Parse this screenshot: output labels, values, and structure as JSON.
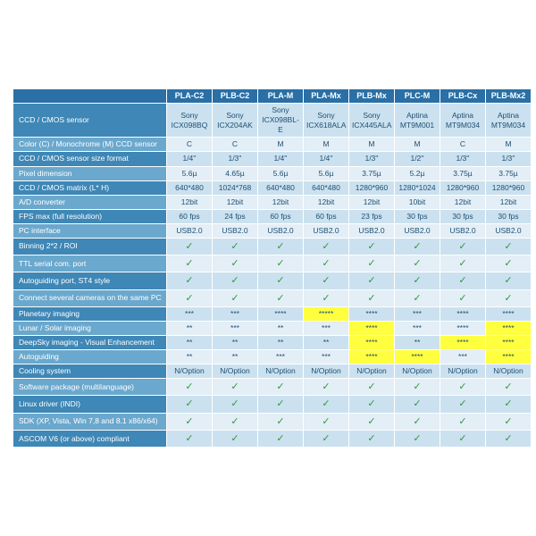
{
  "colors": {
    "header_bg": "#2a6fa5",
    "row_odd_label": "#3e87b6",
    "row_even_label": "#6ba8cd",
    "cell_odd": "#cbe1ef",
    "cell_even": "#e3eef6",
    "highlight": "#ffff3f",
    "text_cell": "#1f4f72"
  },
  "columns": [
    "PLA-C2",
    "PLB-C2",
    "PLA-M",
    "PLA-Mx",
    "PLB-Mx",
    "PLC-M",
    "PLB-Cx",
    "PLB-Mx2"
  ],
  "rows": [
    {
      "label": "CCD / CMOS sensor",
      "cells": [
        "Sony ICX098BQ",
        "Sony ICX204AK",
        "Sony ICX098BL-E",
        "Sony ICX618ALA",
        "Sony ICX445ALA",
        "Aptina MT9M001",
        "Aptina MT9M034",
        "Aptina MT9M034"
      ]
    },
    {
      "label": "Color (C) / Monochrome (M) CCD sensor",
      "cells": [
        "C",
        "C",
        "M",
        "M",
        "M",
        "M",
        "C",
        "M"
      ]
    },
    {
      "label": "CCD / CMOS sensor size format",
      "cells": [
        "1/4''",
        "1/3''",
        "1/4''",
        "1/4''",
        "1/3''",
        "1/2''",
        "1/3''",
        "1/3''"
      ]
    },
    {
      "label": "Pixel dimension",
      "cells": [
        "5.6µ",
        "4.65µ",
        "5.6µ",
        "5.6µ",
        "3.75µ",
        "5.2µ",
        "3.75µ",
        "3.75µ"
      ]
    },
    {
      "label": "CCD / CMOS matrix (L* H)",
      "cells": [
        "640*480",
        "1024*768",
        "640*480",
        "640*480",
        "1280*960",
        "1280*1024",
        "1280*960",
        "1280*960"
      ]
    },
    {
      "label": "A/D converter",
      "cells": [
        "12bit",
        "12bit",
        "12bit",
        "12bit",
        "12bit",
        "10bit",
        "12bit",
        "12bit"
      ]
    },
    {
      "label": "FPS max (full resolution)",
      "cells": [
        "60 fps",
        "24 fps",
        "60 fps",
        "60 fps",
        "23 fps",
        "30 fps",
        "30 fps",
        "30 fps"
      ]
    },
    {
      "label": "PC interface",
      "cells": [
        "USB2.0",
        "USB2.0",
        "USB2.0",
        "USB2.0",
        "USB2.0",
        "USB2.0",
        "USB2.0",
        "USB2.0"
      ]
    },
    {
      "label": "Binning 2*2 / ROI",
      "cells": [
        "✓",
        "✓",
        "✓",
        "✓",
        "✓",
        "✓",
        "✓",
        "✓"
      ],
      "check": true
    },
    {
      "label": "TTL serial com. port",
      "cells": [
        "✓",
        "✓",
        "✓",
        "✓",
        "✓",
        "✓",
        "✓",
        "✓"
      ],
      "check": true
    },
    {
      "label": "Autoguiding port, ST4 style",
      "cells": [
        "✓",
        "✓",
        "✓",
        "✓",
        "✓",
        "✓",
        "✓",
        "✓"
      ],
      "check": true
    },
    {
      "label": "Connect several cameras on the same PC",
      "cells": [
        "✓",
        "✓",
        "✓",
        "✓",
        "✓",
        "✓",
        "✓",
        "✓"
      ],
      "check": true
    },
    {
      "label": "Planetary imaging",
      "cells": [
        "***",
        "***",
        "****",
        "*****",
        "****",
        "***",
        "****",
        "****"
      ],
      "hl": [
        3
      ]
    },
    {
      "label": "Lunar / Solar imaging",
      "cells": [
        "**",
        "***",
        "**",
        "***",
        "****",
        "***",
        "****",
        "****"
      ],
      "hl": [
        4,
        7
      ]
    },
    {
      "label": "DeepSky imaging - Visual Enhancement",
      "cells": [
        "**",
        "**",
        "**",
        "**",
        "****",
        "**",
        "****",
        "****"
      ],
      "hl": [
        4,
        6,
        7
      ]
    },
    {
      "label": "Autoguiding",
      "cells": [
        "**",
        "**",
        "***",
        "***",
        "****",
        "****",
        "***",
        "****"
      ],
      "hl": [
        4,
        5,
        7
      ]
    },
    {
      "label": "Cooling system",
      "cells": [
        "N/Option",
        "N/Option",
        "N/Option",
        "N/Option",
        "N/Option",
        "N/Option",
        "N/Option",
        "N/Option"
      ]
    },
    {
      "label": "Software package (multilanguage)",
      "cells": [
        "✓",
        "✓",
        "✓",
        "✓",
        "✓",
        "✓",
        "✓",
        "✓"
      ],
      "check": true
    },
    {
      "label": "Linux driver (INDI)",
      "cells": [
        "✓",
        "✓",
        "✓",
        "✓",
        "✓",
        "✓",
        "✓",
        "✓"
      ],
      "check": true
    },
    {
      "label": "SDK (XP, Vista, Win 7,8 and 8.1 x86/x64)",
      "cells": [
        "✓",
        "✓",
        "✓",
        "✓",
        "✓",
        "✓",
        "✓",
        "✓"
      ],
      "check": true
    },
    {
      "label": "ASCOM V6 (or above) compliant",
      "cells": [
        "✓",
        "✓",
        "✓",
        "✓",
        "✓",
        "✓",
        "✓",
        "✓"
      ],
      "check": true
    }
  ]
}
